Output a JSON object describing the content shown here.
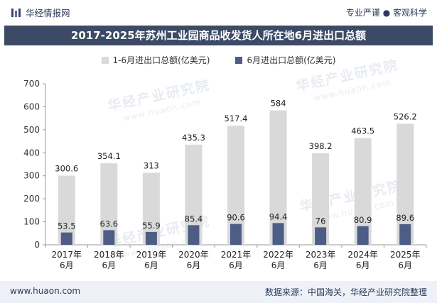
{
  "header": {
    "brand": "华经情报网",
    "tagline": "专业严谨 ● 客观科学"
  },
  "watermark": {
    "text": "华经产业研究院",
    "sub": "www.huaon.com"
  },
  "chart_data": {
    "type": "bar",
    "title": "2017-2025年苏州工业园商品收发货人所在地6月进出口总额",
    "categories": [
      "2017年\n6月",
      "2018年\n6月",
      "2019年\n6月",
      "2020年\n6月",
      "2021年\n6月",
      "2022年\n6月",
      "2023年\n6月",
      "2024年\n6月",
      "2025年\n6月"
    ],
    "series": [
      {
        "name": "1-6月进出口总额(亿美元)",
        "color": "#d9d9d9",
        "values": [
          300.6,
          354.1,
          313,
          435.3,
          517.4,
          584,
          398.2,
          463.5,
          526.2
        ]
      },
      {
        "name": "6月进出口总额(亿美元)",
        "color": "#4e5d85",
        "values": [
          53.5,
          63.6,
          55.9,
          85.4,
          90.6,
          94.4,
          76,
          80.9,
          89.6
        ]
      }
    ],
    "yticks": [
      0,
      100,
      200,
      300,
      400,
      500,
      600,
      700
    ],
    "ylim": [
      0,
      700
    ],
    "grid": false,
    "legend_position": "top"
  },
  "footer": {
    "website": "www.huaon.com",
    "source": "数据来源：中国海关，华经产业研究院整理"
  }
}
